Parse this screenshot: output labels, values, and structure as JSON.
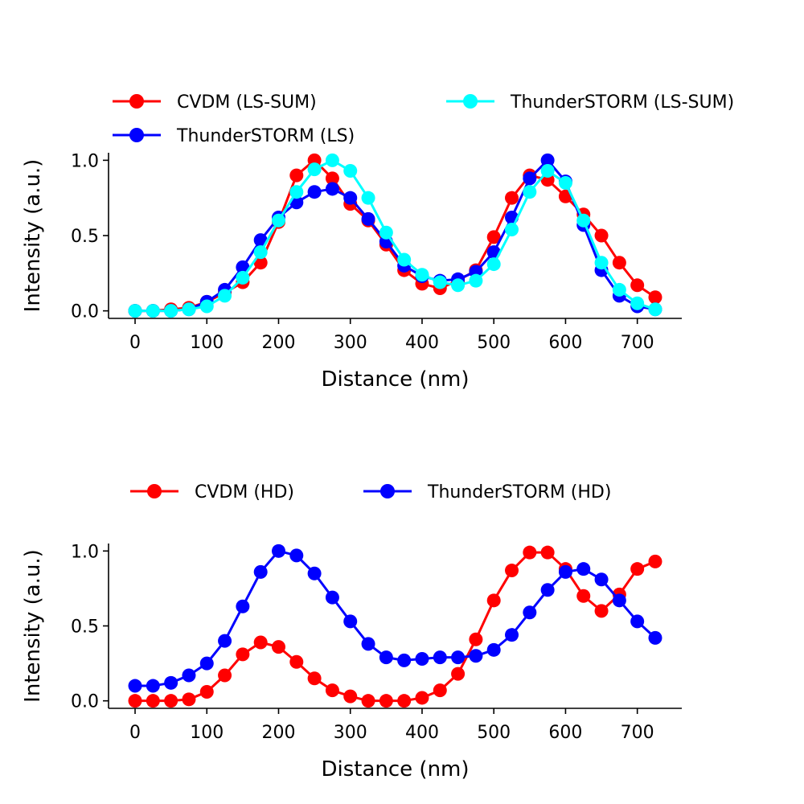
{
  "chart_data": [
    {
      "type": "line",
      "xlabel": "Distance (nm)",
      "ylabel": "Intensity (a.u.)",
      "xlim": [
        -37,
        762
      ],
      "ylim": [
        -0.05,
        1.05
      ],
      "xticks": [
        0,
        100,
        200,
        300,
        400,
        500,
        600,
        700
      ],
      "yticks": [
        0.0,
        0.5,
        1.0
      ],
      "xtick_labels": [
        "0",
        "100",
        "200",
        "300",
        "400",
        "500",
        "600",
        "700"
      ],
      "ytick_labels": [
        "0.0",
        "0.5",
        "1.0"
      ],
      "grid": false,
      "legend_placement": "above, 2 columns",
      "x": [
        0,
        25,
        50,
        75,
        100,
        125,
        150,
        175,
        200,
        225,
        250,
        275,
        300,
        325,
        350,
        375,
        400,
        425,
        450,
        475,
        500,
        525,
        550,
        575,
        600,
        625,
        650,
        675,
        700,
        725
      ],
      "series": [
        {
          "name": "CVDM (LS-SUM)",
          "color": "#ff0000",
          "values": [
            0.0,
            0.0,
            0.01,
            0.02,
            0.06,
            0.12,
            0.19,
            0.32,
            0.59,
            0.9,
            1.0,
            0.88,
            0.71,
            0.6,
            0.44,
            0.27,
            0.18,
            0.15,
            0.2,
            0.27,
            0.49,
            0.75,
            0.9,
            0.87,
            0.76,
            0.64,
            0.5,
            0.32,
            0.17,
            0.09
          ]
        },
        {
          "name": "ThunderSTORM (LS)",
          "color": "#0000ff",
          "values": [
            0.0,
            0.0,
            0.0,
            0.01,
            0.06,
            0.14,
            0.29,
            0.47,
            0.62,
            0.72,
            0.79,
            0.81,
            0.75,
            0.61,
            0.46,
            0.3,
            0.23,
            0.2,
            0.21,
            0.26,
            0.39,
            0.62,
            0.88,
            1.0,
            0.86,
            0.57,
            0.27,
            0.1,
            0.03,
            0.01
          ]
        },
        {
          "name": "ThunderSTORM (LS-SUM)",
          "color": "#00ffff",
          "values": [
            0.0,
            0.0,
            0.0,
            0.01,
            0.03,
            0.1,
            0.22,
            0.39,
            0.6,
            0.79,
            0.94,
            1.0,
            0.93,
            0.75,
            0.52,
            0.34,
            0.24,
            0.19,
            0.17,
            0.2,
            0.31,
            0.54,
            0.79,
            0.93,
            0.85,
            0.6,
            0.32,
            0.14,
            0.05,
            0.01
          ]
        }
      ]
    },
    {
      "type": "line",
      "xlabel": "Distance (nm)",
      "ylabel": "Intensity (a.u.)",
      "xlim": [
        -37,
        762
      ],
      "ylim": [
        -0.05,
        1.05
      ],
      "xticks": [
        0,
        100,
        200,
        300,
        400,
        500,
        600,
        700
      ],
      "yticks": [
        0.0,
        0.5,
        1.0
      ],
      "xtick_labels": [
        "0",
        "100",
        "200",
        "300",
        "400",
        "500",
        "600",
        "700"
      ],
      "ytick_labels": [
        "0.0",
        "0.5",
        "1.0"
      ],
      "grid": false,
      "legend_placement": "above, 2 columns",
      "x": [
        0,
        25,
        50,
        75,
        100,
        125,
        150,
        175,
        200,
        225,
        250,
        275,
        300,
        325,
        350,
        375,
        400,
        425,
        450,
        475,
        500,
        525,
        550,
        575,
        600,
        625,
        650,
        675,
        700,
        725
      ],
      "series": [
        {
          "name": "CVDM (HD)",
          "color": "#ff0000",
          "values": [
            0.0,
            0.0,
            0.0,
            0.01,
            0.06,
            0.17,
            0.31,
            0.39,
            0.36,
            0.26,
            0.15,
            0.07,
            0.03,
            0.0,
            0.0,
            0.0,
            0.02,
            0.07,
            0.18,
            0.41,
            0.67,
            0.87,
            0.99,
            0.99,
            0.88,
            0.7,
            0.6,
            0.71,
            0.88,
            0.93
          ]
        },
        {
          "name": "ThunderSTORM (HD)",
          "color": "#0000ff",
          "values": [
            0.1,
            0.1,
            0.12,
            0.17,
            0.25,
            0.4,
            0.63,
            0.86,
            1.0,
            0.97,
            0.85,
            0.69,
            0.53,
            0.38,
            0.29,
            0.27,
            0.28,
            0.29,
            0.29,
            0.3,
            0.34,
            0.44,
            0.59,
            0.74,
            0.86,
            0.88,
            0.81,
            0.67,
            0.53,
            0.42
          ]
        }
      ]
    }
  ]
}
